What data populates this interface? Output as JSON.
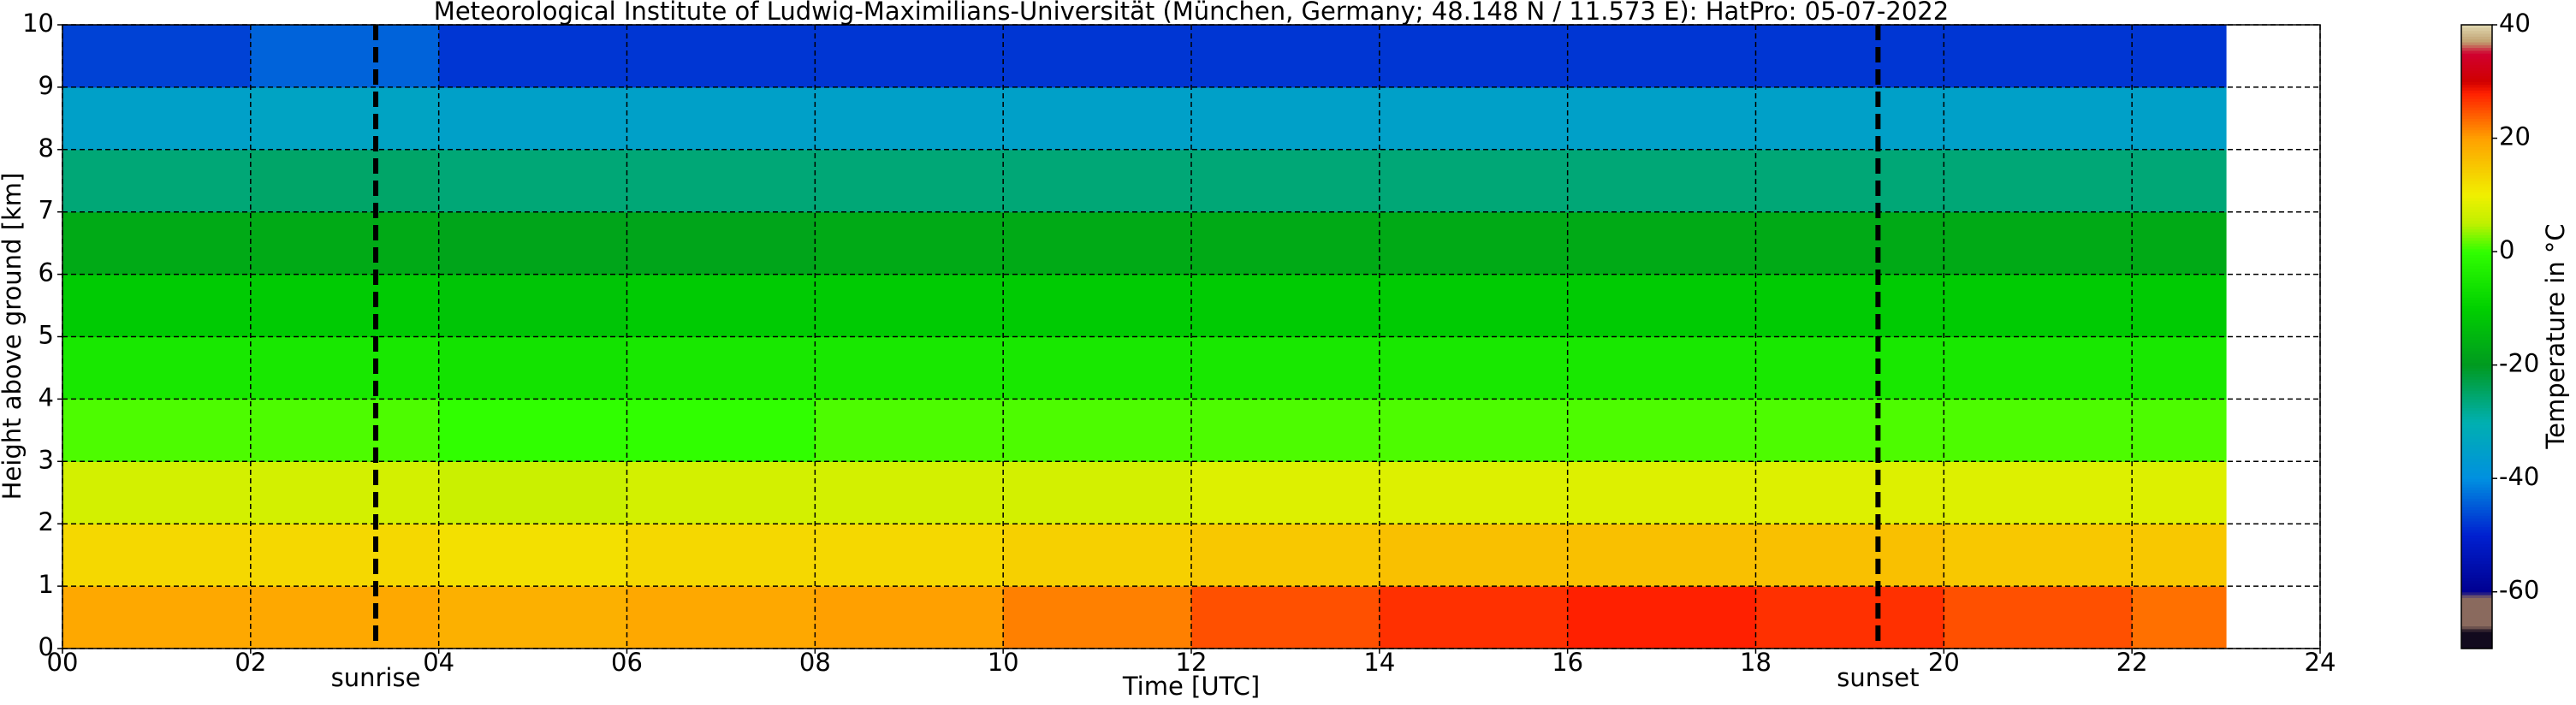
{
  "chart_data": {
    "type": "heatmap",
    "title": "Meteorological Institute of Ludwig-Maximilians-Universität (München, Germany; 48.148 N / 11.573 E):    HatPro: 05-07-2022",
    "x_label": "Time [UTC]",
    "y_label": "Height above ground [km]",
    "colorbar_label": "Temperature in °C",
    "x_bins": [
      0,
      2,
      4,
      6,
      8,
      10,
      12,
      14,
      16,
      18,
      20,
      22,
      23
    ],
    "y_bins": [
      0,
      1,
      2,
      3,
      4,
      5,
      6,
      7,
      8,
      9,
      10
    ],
    "values": [
      [
        19,
        19,
        18,
        19,
        20,
        22,
        25,
        27,
        28,
        27,
        25,
        23
      ],
      [
        13,
        13,
        12,
        13,
        13,
        14,
        15,
        16,
        16,
        16,
        15,
        15
      ],
      [
        7,
        7,
        6,
        7,
        7,
        7,
        8,
        8,
        8,
        8,
        8,
        8
      ],
      [
        1,
        1,
        0,
        0,
        1,
        1,
        1,
        1,
        1,
        1,
        1,
        1
      ],
      [
        -5,
        -5,
        -6,
        -5,
        -5,
        -5,
        -5,
        -5,
        -5,
        -5,
        -5,
        -5
      ],
      [
        -11,
        -11,
        -12,
        -11,
        -11,
        -11,
        -11,
        -11,
        -11,
        -11,
        -11,
        -11
      ],
      [
        -17,
        -17,
        -18,
        -18,
        -17,
        -17,
        -17,
        -17,
        -17,
        -17,
        -17,
        -17
      ],
      [
        -26,
        -25,
        -26,
        -26,
        -26,
        -26,
        -26,
        -26,
        -26,
        -26,
        -26,
        -26
      ],
      [
        -35,
        -34,
        -35,
        -35,
        -35,
        -35,
        -35,
        -35,
        -35,
        -35,
        -35,
        -35
      ],
      [
        -47,
        -44,
        -48,
        -48,
        -48,
        -48,
        -48,
        -48,
        -48,
        -48,
        -48,
        -48
      ]
    ],
    "xlim": [
      0,
      24
    ],
    "ylim": [
      0,
      10
    ],
    "xticks": [
      {
        "value": 0,
        "label": "00"
      },
      {
        "value": 2,
        "label": "02"
      },
      {
        "value": 4,
        "label": "04"
      },
      {
        "value": 6,
        "label": "06"
      },
      {
        "value": 8,
        "label": "08"
      },
      10,
      12,
      14,
      16,
      18,
      20,
      22,
      24
    ],
    "yticks": [
      0,
      1,
      2,
      3,
      4,
      5,
      6,
      7,
      8,
      9,
      10
    ],
    "clim": [
      -70,
      40
    ],
    "cticks": [
      -60,
      -40,
      -20,
      0,
      20,
      40
    ],
    "colorscale": [
      [
        -70,
        "#120a1e"
      ],
      [
        -67,
        "#120a1e"
      ],
      [
        -66,
        "#8a6a5e"
      ],
      [
        -61,
        "#8a6a5e"
      ],
      [
        -60,
        "#000090"
      ],
      [
        -50,
        "#0020d0"
      ],
      [
        -40,
        "#0090e0"
      ],
      [
        -30,
        "#00b0b0"
      ],
      [
        -20,
        "#009a20"
      ],
      [
        -10,
        "#00d000"
      ],
      [
        0,
        "#30ff00"
      ],
      [
        5,
        "#c0f000"
      ],
      [
        10,
        "#f0f000"
      ],
      [
        20,
        "#ffa000"
      ],
      [
        28,
        "#ff2000"
      ],
      [
        30,
        "#d00000"
      ],
      [
        35,
        "#d00030"
      ],
      [
        37,
        "#c0a070"
      ],
      [
        40,
        "#e0d8b0"
      ]
    ],
    "grid": true,
    "annotations": [
      {
        "text": "sunrise",
        "x": 3.33
      },
      {
        "text": "sunset",
        "x": 19.3
      }
    ]
  }
}
